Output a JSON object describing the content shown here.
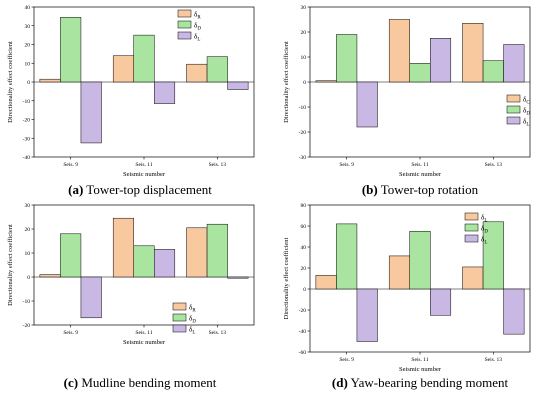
{
  "colors": {
    "series1": "#F8C99F",
    "series2": "#A9E5A0",
    "series3": "#C9B8E3",
    "stroke": "#000000"
  },
  "chart_data": [
    {
      "type": "bar",
      "caption_letter": "(a)",
      "caption_text": "Tower-top displacement",
      "categories": [
        "Seis. 9",
        "Seis. 11",
        "Seis. 13"
      ],
      "series": [
        {
          "name": "δR",
          "base": "δ",
          "sub": "R",
          "values": [
            1.5,
            14,
            9.5
          ]
        },
        {
          "name": "δD",
          "base": "δ",
          "sub": "D",
          "values": [
            34.5,
            25,
            13.5
          ]
        },
        {
          "name": "δL",
          "base": "δ",
          "sub": "L",
          "values": [
            -32.5,
            -11.5,
            -4
          ]
        }
      ],
      "xlabel": "Seismic number",
      "ylabel": "Directionality effect coefficient",
      "ylim": [
        -40,
        40
      ],
      "yticks": [
        -40,
        -30,
        -20,
        -10,
        0,
        10,
        20,
        30,
        40
      ],
      "legend": "top-right"
    },
    {
      "type": "bar",
      "caption_letter": "(b)",
      "caption_text": "Tower-top rotation",
      "categories": [
        "Seis. 9",
        "Seis. 11",
        "Seis. 13"
      ],
      "series": [
        {
          "name": "δC",
          "base": "δ",
          "sub": "C",
          "values": [
            0.5,
            25,
            23.5
          ]
        },
        {
          "name": "δD",
          "base": "δ",
          "sub": "D",
          "values": [
            19,
            7.5,
            8.5
          ]
        },
        {
          "name": "δL",
          "base": "δ",
          "sub": "L",
          "values": [
            -18,
            17.5,
            15
          ]
        }
      ],
      "xlabel": "Seismic number",
      "ylabel": "Directionality effect coefficient",
      "ylim": [
        -30,
        30
      ],
      "yticks": [
        -30,
        -20,
        -10,
        0,
        10,
        20,
        30
      ],
      "legend": "bottom-right"
    },
    {
      "type": "bar",
      "caption_letter": "(c)",
      "caption_text": "Mudline bending moment",
      "categories": [
        "Seis. 9",
        "Seis. 11",
        "Seis. 13"
      ],
      "series": [
        {
          "name": "δR",
          "base": "δ",
          "sub": "R",
          "values": [
            1,
            24.5,
            20.5
          ]
        },
        {
          "name": "δD",
          "base": "δ",
          "sub": "D",
          "values": [
            18,
            13,
            22
          ]
        },
        {
          "name": "δL",
          "base": "δ",
          "sub": "L",
          "values": [
            -17,
            11.5,
            -0.5
          ]
        }
      ],
      "xlabel": "Seismic number",
      "ylabel": "Directionality effect coefficient",
      "ylim": [
        -20,
        30
      ],
      "yticks": [
        -20,
        -10,
        0,
        10,
        20,
        30
      ],
      "legend": "bottom-right"
    },
    {
      "type": "bar",
      "caption_letter": "(d)",
      "caption_text": "Yaw-bearing bending moment",
      "categories": [
        "Seis. 9",
        "Seis. 11",
        "Seis. 13"
      ],
      "series": [
        {
          "name": "δL",
          "base": "δ",
          "sub": "L",
          "values": [
            13,
            31.5,
            21
          ]
        },
        {
          "name": "δD",
          "base": "δ",
          "sub": "D",
          "values": [
            62,
            55,
            64
          ]
        },
        {
          "name": "δL",
          "base": "δ",
          "sub": "L",
          "values": [
            -50,
            -25,
            -43
          ]
        }
      ],
      "xlabel": "Seismic number",
      "ylabel": "Directionality effect coefficient",
      "ylim": [
        -60,
        80
      ],
      "yticks": [
        -60,
        -40,
        -20,
        0,
        20,
        40,
        60,
        80
      ],
      "legend": "top-right"
    }
  ]
}
